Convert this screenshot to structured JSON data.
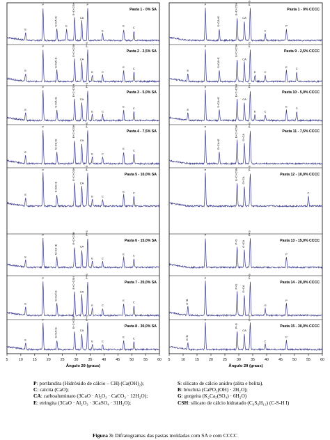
{
  "chart_data": [
    {
      "type": "line",
      "title": "",
      "xlabel": "Ângulo 2θ (graus)",
      "ylabel": "",
      "xlim": [
        5,
        60
      ],
      "xticks": [
        5,
        10,
        15,
        20,
        25,
        30,
        35,
        40,
        45,
        50,
        55,
        60
      ],
      "series": [
        {
          "name": "Pasta 1 - 0% SA",
          "peaks": [
            [
              18.0,
              1.0,
              "P"
            ],
            [
              11.7,
              0.25,
              "E"
            ],
            [
              23.0,
              0.35,
              "S+CA+E"
            ],
            [
              26.5,
              0.35,
              "E"
            ],
            [
              29.4,
              0.7,
              "E+C+CSH"
            ],
            [
              32.0,
              0.6,
              "CA"
            ],
            [
              34.1,
              1.0,
              "P"
            ],
            [
              39.5,
              0.2,
              "E"
            ],
            [
              47.1,
              0.35,
              "E"
            ],
            [
              50.8,
              0.3,
              "C"
            ]
          ]
        },
        {
          "name": "Pasta 2 - 2,5% SA",
          "peaks": [
            [
              18.0,
              1.0,
              "P"
            ],
            [
              11.7,
              0.25,
              "E"
            ],
            [
              23.0,
              0.35,
              "S+CA+E"
            ],
            [
              29.4,
              0.7,
              "E+C+CSH"
            ],
            [
              32.0,
              0.6,
              "CA"
            ],
            [
              34.1,
              1.0,
              "P+S"
            ],
            [
              35.8,
              0.2,
              "E"
            ],
            [
              39.5,
              0.2,
              "C"
            ],
            [
              47.1,
              0.35,
              "E"
            ],
            [
              50.8,
              0.3,
              "C"
            ]
          ]
        },
        {
          "name": "Pasta 3 - 5,0% SA",
          "peaks": [
            [
              18.0,
              1.0,
              "P"
            ],
            [
              11.7,
              0.25,
              "E"
            ],
            [
              23.0,
              0.35,
              "S+CA+E"
            ],
            [
              29.4,
              0.7,
              "E+C+CSH"
            ],
            [
              32.0,
              0.6,
              "CA"
            ],
            [
              34.1,
              1.0,
              "P+S"
            ],
            [
              35.8,
              0.2,
              "E"
            ],
            [
              39.5,
              0.2,
              "C"
            ],
            [
              47.1,
              0.35,
              "E"
            ],
            [
              50.8,
              0.3,
              "C"
            ]
          ]
        },
        {
          "name": "Pasta 4 - 7,5% SA",
          "peaks": [
            [
              18.0,
              1.0,
              "P"
            ],
            [
              11.7,
              0.25,
              "E"
            ],
            [
              23.0,
              0.35,
              "S+CA+E"
            ],
            [
              29.4,
              0.7,
              "E+C+CSH"
            ],
            [
              32.0,
              0.6,
              "CA"
            ],
            [
              34.1,
              1.0,
              "P+S"
            ],
            [
              35.8,
              0.2,
              "E"
            ],
            [
              39.5,
              0.2,
              "C"
            ],
            [
              47.1,
              0.35,
              "E"
            ],
            [
              50.8,
              0.3,
              "C"
            ]
          ]
        },
        {
          "name": "Pasta 5 - 10,0% SA",
          "peaks": [
            [
              18.0,
              1.0,
              "P"
            ],
            [
              11.7,
              0.25,
              "E"
            ],
            [
              23.0,
              0.35,
              "S+CA+E"
            ],
            [
              29.4,
              0.7,
              "E+C+CSH"
            ],
            [
              32.0,
              0.6,
              "CA"
            ],
            [
              34.1,
              1.0,
              "P+S"
            ],
            [
              35.8,
              0.2,
              "E"
            ],
            [
              39.5,
              0.2,
              "C"
            ],
            [
              47.1,
              0.35,
              "E"
            ],
            [
              50.8,
              0.3,
              "C"
            ]
          ]
        },
        {
          "name": "Pasta 6 - 15,0% SA",
          "peaks": [
            [
              18.0,
              1.0,
              "P"
            ],
            [
              11.7,
              0.25,
              "E"
            ],
            [
              23.0,
              0.35,
              "S+CA+E"
            ],
            [
              29.4,
              0.7,
              "E+C+CSH"
            ],
            [
              32.0,
              0.6,
              "CA"
            ],
            [
              34.1,
              1.0,
              "P+S"
            ],
            [
              35.8,
              0.2,
              "E"
            ],
            [
              39.5,
              0.2,
              "C"
            ],
            [
              47.1,
              0.35,
              "E"
            ],
            [
              50.8,
              0.3,
              "C"
            ]
          ]
        },
        {
          "name": "Pasta 7 - 20,0% SA",
          "peaks": [
            [
              18.0,
              1.0,
              "P"
            ],
            [
              11.7,
              0.25,
              "E"
            ],
            [
              23.0,
              0.35,
              "S+CA+E"
            ],
            [
              29.4,
              0.7,
              "E+C+CSH"
            ],
            [
              32.0,
              0.6,
              "CA"
            ],
            [
              34.1,
              1.0,
              "P+S"
            ],
            [
              35.8,
              0.2,
              "E"
            ],
            [
              39.5,
              0.2,
              "C"
            ],
            [
              47.1,
              0.35,
              "E"
            ],
            [
              50.8,
              0.3,
              "C"
            ]
          ]
        },
        {
          "name": "Pasta 8 - 30,0% SA",
          "peaks": [
            [
              18.0,
              1.0,
              "P"
            ],
            [
              11.7,
              0.25,
              "E"
            ],
            [
              23.0,
              0.35,
              "S+CA+E"
            ],
            [
              29.4,
              0.7,
              "E+C+CSH"
            ],
            [
              32.0,
              0.6,
              "CA"
            ],
            [
              34.1,
              1.0,
              "P+S"
            ],
            [
              35.8,
              0.2,
              "E"
            ],
            [
              39.5,
              0.2,
              "C"
            ],
            [
              47.1,
              0.35,
              "E"
            ],
            [
              50.8,
              0.3,
              "C"
            ]
          ]
        }
      ]
    },
    {
      "type": "line",
      "title": "",
      "xlabel": "Ângulo 2θ (graus)",
      "ylabel": "",
      "xlim": [
        5,
        60
      ],
      "xticks": [
        5,
        10,
        15,
        20,
        25,
        30,
        35,
        40,
        45,
        50,
        55,
        60
      ],
      "series": [
        {
          "name": "Pasta 1 - 0% CCCC",
          "peaks": [
            [
              18.0,
              1.0,
              "P"
            ],
            [
              23.0,
              0.35,
              "S+CA+E"
            ],
            [
              29.4,
              0.7,
              "E+C+CSH"
            ],
            [
              32.0,
              0.6,
              "CA"
            ],
            [
              34.1,
              1.0,
              "P+S"
            ],
            [
              39.5,
              0.2,
              "C"
            ],
            [
              47.1,
              0.35,
              "P"
            ]
          ]
        },
        {
          "name": "Pasta 9 - 2,5% CCCC",
          "peaks": [
            [
              18.0,
              1.0,
              "P"
            ],
            [
              11.7,
              0.25,
              "E"
            ],
            [
              23.0,
              0.35,
              "S+CA+E"
            ],
            [
              29.4,
              0.7,
              "E+C+CSH"
            ],
            [
              32.0,
              0.6,
              "CA"
            ],
            [
              34.1,
              1.0,
              "P+S"
            ],
            [
              35.8,
              0.2,
              "E"
            ],
            [
              39.5,
              0.2,
              "C"
            ],
            [
              47.1,
              0.35,
              "E"
            ],
            [
              50.8,
              0.3,
              "C"
            ]
          ]
        },
        {
          "name": "Pasta 10 - 5,0% CCCC",
          "peaks": [
            [
              18.0,
              1.0,
              "P"
            ],
            [
              11.7,
              0.25,
              "E"
            ],
            [
              23.0,
              0.35,
              "S+CA+E"
            ],
            [
              29.4,
              0.7,
              "E+C+CSH"
            ],
            [
              32.0,
              0.6,
              "CA"
            ],
            [
              34.1,
              1.0,
              "P+S"
            ],
            [
              35.8,
              0.2,
              "E"
            ],
            [
              39.5,
              0.2,
              "C"
            ],
            [
              47.1,
              0.35,
              "E"
            ],
            [
              50.8,
              0.3,
              "C"
            ]
          ]
        },
        {
          "name": "Pasta 11 - 7,5% CCCC",
          "peaks": [
            [
              18.0,
              1.0,
              "P"
            ],
            [
              23.0,
              0.35,
              "S+CA+E"
            ],
            [
              29.4,
              0.7,
              "E+C+CSH"
            ],
            [
              32.0,
              0.6,
              "G+CA"
            ],
            [
              34.1,
              1.0,
              "P+S"
            ]
          ]
        },
        {
          "name": "Pasta 12 - 10,0% CCCC",
          "peaks": [
            [
              18.0,
              1.0,
              "P"
            ],
            [
              29.4,
              0.7,
              "E+C+CSH"
            ],
            [
              32.0,
              0.6,
              "G+CA"
            ],
            [
              34.1,
              1.0,
              "P+S"
            ],
            [
              55.0,
              0.3,
              "C"
            ]
          ]
        },
        {
          "name": "Pasta 13 - 15,0% CCCC",
          "peaks": [
            [
              18.0,
              1.0,
              "P"
            ],
            [
              29.4,
              0.7,
              "P+G"
            ],
            [
              32.0,
              0.6,
              "G+CA"
            ],
            [
              34.1,
              1.0,
              "P+S"
            ],
            [
              47.1,
              0.35,
              "P"
            ]
          ]
        },
        {
          "name": "Pasta 14 - 20,0% CCCC",
          "peaks": [
            [
              18.0,
              1.0,
              "P"
            ],
            [
              11.7,
              0.25,
              "G+B"
            ],
            [
              29.4,
              0.7,
              "P+G"
            ],
            [
              32.0,
              0.6,
              "G+CA"
            ],
            [
              34.1,
              1.0,
              "P+S"
            ],
            [
              39.5,
              0.2,
              "G"
            ],
            [
              47.1,
              0.35,
              "P"
            ]
          ]
        },
        {
          "name": "Pasta 15 - 30,0% CCCC",
          "peaks": [
            [
              18.0,
              1.0,
              "P"
            ],
            [
              11.7,
              0.25,
              "G+B"
            ],
            [
              29.4,
              0.7,
              "P+G"
            ],
            [
              32.0,
              0.6,
              "CA"
            ],
            [
              34.1,
              1.0,
              "P+S"
            ],
            [
              39.5,
              0.2,
              "C"
            ],
            [
              47.1,
              0.35,
              "P"
            ]
          ]
        }
      ]
    }
  ],
  "colors": {
    "trace": "#3a3a8c",
    "axis": "#000000"
  },
  "legend": {
    "left": [
      {
        "key": "P",
        "text": ": portlandita (Hidróxido de cálcio – CH) (Ca(OH)₂);"
      },
      {
        "key": "C",
        "text": ": calcita (CaO);"
      },
      {
        "key": "CA",
        "text": ": carboaluminato (3CaO · Al₂O₃ · CaCO₃ · 12H₂O);"
      },
      {
        "key": "E",
        "text": ": etringita (3CaO · Al₂O₃ · 3CaSO₄ · 31H₂O);"
      }
    ],
    "right": [
      {
        "key": "S",
        "text": ": silicato de cálcio anidro (alita e belita)."
      },
      {
        "key": "B",
        "text": ": bruchita (CaPO₃(OH) · 2H₂O);"
      },
      {
        "key": "G",
        "text": ": gorgeita (K₂Ca₅(SO₄) · 6H₂O)"
      },
      {
        "key": "CSH",
        "text": ": silicato de cálcio hidratado (C₆S₆H₁₁) (C-S-H I)"
      }
    ]
  },
  "caption": {
    "label": "Figura 3:",
    "text": " Difratogramas das pastas moldadas com SA e com CCCC"
  }
}
